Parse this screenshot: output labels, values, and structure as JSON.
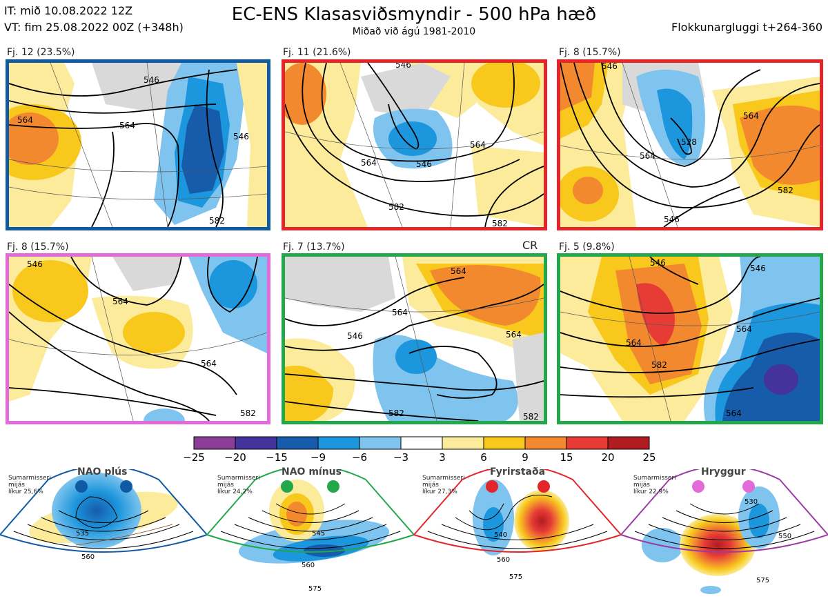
{
  "header": {
    "it_line": "IT: mið 10.08.2022 12Z",
    "vt_line": "VT: fim 25.08.2022 00Z  (+348h)",
    "title": "EC-ENS Klasasviðsmyndir - 500 hPa hæð",
    "subtitle": "Miðað við ágú 1981-2010",
    "window": "Flokkunargluggi t+264-360"
  },
  "clusters": [
    {
      "label": "Fj. 12 (23.5%)",
      "border": "#1059a5",
      "contours": [
        "546",
        "564",
        "564",
        "546",
        "582"
      ]
    },
    {
      "label": "Fj. 11 (21.6%)",
      "border": "#e3262a",
      "contours": [
        "546",
        "564",
        "582",
        "564",
        "582",
        "546"
      ]
    },
    {
      "label": "Fj. 8 (15.7%)",
      "border": "#e3262a",
      "contours": [
        "546",
        "564",
        "528",
        "564",
        "582",
        "546"
      ]
    },
    {
      "label": "Fj. 8 (15.7%)",
      "border": "#e36ad9",
      "contours": [
        "546",
        "564",
        "564",
        "582"
      ]
    },
    {
      "label": "Fj. 7 (13.7%)",
      "border": "#22a84a",
      "contours": [
        "564",
        "564",
        "546",
        "564",
        "582",
        "582"
      ]
    },
    {
      "label": "Fj. 5 (9.8%)",
      "border": "#22a84a",
      "contours": [
        "546",
        "564",
        "564",
        "582",
        "546",
        "564"
      ]
    }
  ],
  "cr_label": "CR",
  "colorbar": {
    "ticks": [
      "−25",
      "−20",
      "−15",
      "−9",
      "−6",
      "−3",
      "3",
      "6",
      "9",
      "15",
      "20",
      "25"
    ],
    "colors": [
      "#8a3e96",
      "#44339a",
      "#175bab",
      "#1c96dc",
      "#7ec4ee",
      "#ffffff",
      "#fbeb9a",
      "#f8c91c",
      "#f2892f",
      "#e73b35",
      "#b11c21"
    ]
  },
  "regimes": [
    {
      "name": "NAO plús",
      "info": "Sumarmisseri\nmijás\nlíkur 25,6%",
      "color": "#1059a5",
      "contours": [
        "535",
        "560"
      ]
    },
    {
      "name": "NAO mínus",
      "info": "Sumarmisseri\nmijás\nlíkur 24,2%",
      "color": "#22a84a",
      "contours": [
        "545",
        "560",
        "575"
      ]
    },
    {
      "name": "Fyrirstaða",
      "info": "Sumarmisseri\nmijás\nlíkur 27,3%",
      "color": "#e3262a",
      "contours": [
        "540",
        "560",
        "575"
      ]
    },
    {
      "name": "Hryggur",
      "info": "Sumarmisseri\nmijás\nlíkur 22,9%",
      "color": "#e36ad9",
      "contours": [
        "530",
        "550",
        "575"
      ]
    }
  ]
}
